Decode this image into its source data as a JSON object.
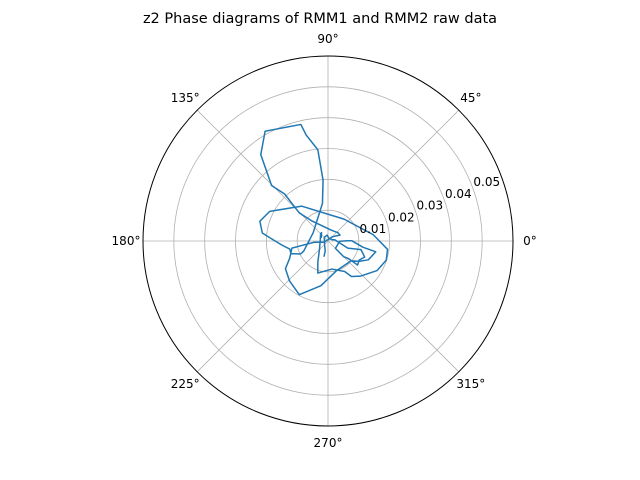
{
  "chart_data": {
    "type": "polar-line",
    "title": "z2 Phase diagrams of RMM1 and RMM2 raw data",
    "angle_ticks": [
      "0°",
      "45°",
      "90°",
      "135°",
      "180°",
      "225°",
      "270°",
      "315°"
    ],
    "angle_tick_degrees": [
      0,
      45,
      90,
      135,
      180,
      225,
      270,
      315
    ],
    "radial_ticks": [
      0.01,
      0.02,
      0.03,
      0.04,
      0.05
    ],
    "radial_tick_labels": [
      "0.01",
      "0.02",
      "0.03",
      "0.04",
      "0.05"
    ],
    "rlim": [
      0,
      0.06
    ],
    "grid": true,
    "series": [
      {
        "color": "#1f77b4",
        "x": [
          -0.0013,
          -0.0009,
          -0.0011,
          -0.0012,
          -0.0003,
          0.0003,
          0.0014,
          0.0022,
          0.0064,
          0.0107,
          0.0119,
          0.0101,
          0.0096,
          0.0068,
          0.0051,
          0.0024,
          0.0038,
          0.0064,
          0.0077,
          0.0113,
          0.0155,
          0.0131,
          0.01,
          0.0075,
          0.0028,
          -0.0023,
          -0.0093,
          -0.0125,
          -0.0138,
          -0.0124,
          -0.0117,
          -0.0083,
          -0.0045,
          -0.0013,
          0.0004,
          0.0015,
          0.0039,
          0.0032,
          0.0009,
          -0.0054,
          -0.0093,
          -0.0118,
          -0.014,
          -0.0183,
          -0.0197,
          -0.0218,
          -0.0204,
          -0.0178,
          -0.0088,
          -0.0071,
          -0.0033,
          -0.0016,
          -0.0018,
          -0.0048,
          -0.0079,
          -0.0089,
          -0.012,
          -0.0124,
          -0.015,
          -0.0188,
          -0.0213,
          -0.0221,
          -0.0189,
          -0.0085,
          0.0052,
          0.0146,
          0.0193,
          0.0189,
          0.0159,
          0.0105,
          0.0076,
          0.0054,
          0.0013,
          -0.0033,
          -0.0033,
          -0.0028,
          -0.0025,
          -0.0024,
          -0.0021,
          -0.0022
        ],
        "y": [
          -0.0051,
          -0.0032,
          -0.0012,
          0.0012,
          0.0019,
          0.0009,
          0.0004,
          0.0004,
          -0.0023,
          -0.0028,
          -0.0052,
          -0.0062,
          -0.0078,
          -0.0058,
          -0.0051,
          -0.0024,
          -0.0001,
          0.0001,
          0.0001,
          -0.002,
          -0.0035,
          -0.0061,
          -0.0066,
          -0.0064,
          -0.0096,
          -0.0145,
          -0.0174,
          -0.0129,
          -0.009,
          -0.0055,
          -0.0023,
          -0.0014,
          -0.0004,
          -0.0004,
          0.0007,
          0.0014,
          0.0019,
          0.0027,
          0.0036,
          0.0066,
          0.0091,
          0.0123,
          0.0152,
          0.018,
          0.022,
          0.028,
          0.0356,
          0.0361,
          0.0378,
          0.0344,
          0.0296,
          0.0197,
          0.0122,
          0.0027,
          -0.0033,
          -0.0042,
          -0.0041,
          -0.0026,
          -0.0013,
          0.001,
          0.0026,
          0.0064,
          0.0096,
          0.0113,
          0.0071,
          0.0021,
          -0.0027,
          -0.0062,
          -0.0096,
          -0.0114,
          -0.0115,
          -0.0099,
          -0.0091,
          -0.0104,
          -0.0069,
          -0.003,
          0.0004,
          0.0024,
          0.0027,
          0.001
        ]
      }
    ]
  }
}
